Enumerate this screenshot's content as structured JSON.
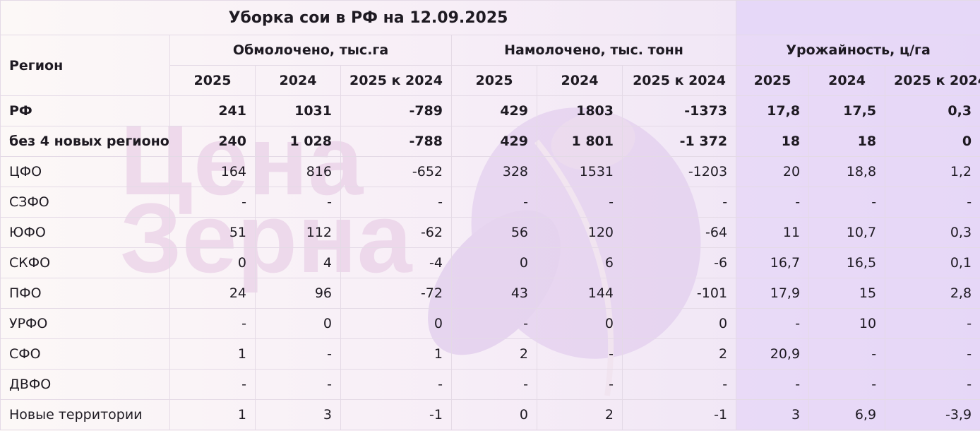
{
  "title": "Уборка сои в РФ на 12.09.2025",
  "headers": {
    "region": "Регион",
    "groups": [
      "Обмолочено, тыс.га",
      "Намолочено, тыс. тонн",
      "Урожайность, ц/га"
    ],
    "sub": [
      "2025",
      "2024",
      "2025 к 2024"
    ]
  },
  "watermark": [
    "Цена",
    "Зерна"
  ],
  "colors": {
    "watermark_text": "#e9cfe6",
    "watermark_leaf": "#dcc3ec",
    "yield_tint": "#e6d8f8"
  },
  "rows": [
    {
      "region": "РФ",
      "bold": true,
      "values": [
        "241",
        "1031",
        "-789",
        "429",
        "1803",
        "-1373",
        "17,8",
        "17,5",
        "0,3"
      ]
    },
    {
      "region": "без 4 новых регионов",
      "bold": true,
      "values": [
        "240",
        "1 028",
        "-788",
        "429",
        "1 801",
        "-1 372",
        "18",
        "18",
        "0"
      ]
    },
    {
      "region": "ЦФО",
      "bold": false,
      "values": [
        "164",
        "816",
        "-652",
        "328",
        "1531",
        "-1203",
        "20",
        "18,8",
        "1,2"
      ]
    },
    {
      "region": "СЗФО",
      "bold": false,
      "values": [
        "-",
        "-",
        "-",
        "-",
        "-",
        "-",
        "-",
        "-",
        "-"
      ]
    },
    {
      "region": "ЮФО",
      "bold": false,
      "values": [
        "51",
        "112",
        "-62",
        "56",
        "120",
        "-64",
        "11",
        "10,7",
        "0,3"
      ]
    },
    {
      "region": "СКФО",
      "bold": false,
      "values": [
        "0",
        "4",
        "-4",
        "0",
        "6",
        "-6",
        "16,7",
        "16,5",
        "0,1"
      ]
    },
    {
      "region": "ПФО",
      "bold": false,
      "values": [
        "24",
        "96",
        "-72",
        "43",
        "144",
        "-101",
        "17,9",
        "15",
        "2,8"
      ]
    },
    {
      "region": "УРФО",
      "bold": false,
      "values": [
        "-",
        "0",
        "0",
        "-",
        "0",
        "0",
        "-",
        "10",
        "-"
      ]
    },
    {
      "region": "СФО",
      "bold": false,
      "values": [
        "1",
        "-",
        "1",
        "2",
        "-",
        "2",
        "20,9",
        "-",
        "-"
      ]
    },
    {
      "region": "ДВФО",
      "bold": false,
      "values": [
        "-",
        "-",
        "-",
        "-",
        "-",
        "-",
        "-",
        "-",
        "-"
      ]
    },
    {
      "region": "Новые территории",
      "bold": false,
      "values": [
        "1",
        "3",
        "-1",
        "0",
        "2",
        "-1",
        "3",
        "6,9",
        "-3,9"
      ]
    }
  ]
}
